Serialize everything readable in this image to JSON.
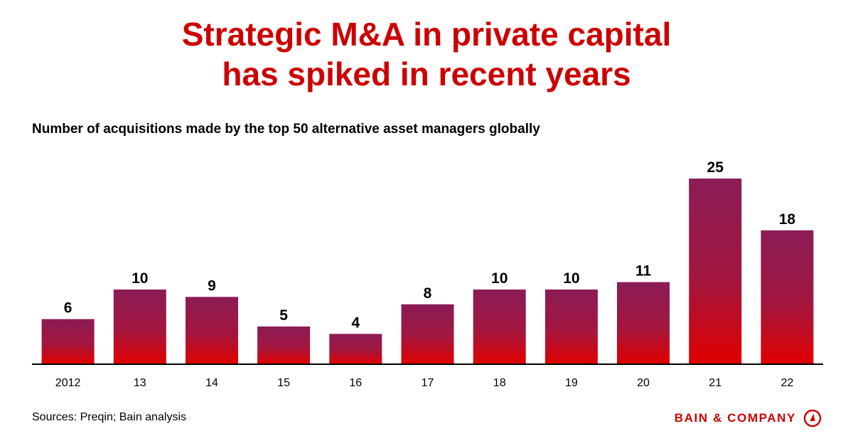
{
  "title_line1": "Strategic M&A in private capital",
  "title_line2": "has spiked in recent years",
  "subtitle": "Number of acquisitions made by the top 50 alternative asset managers globally",
  "source": "Sources: Preqin; Bain analysis",
  "brand": "BAIN & COMPANY",
  "colors": {
    "title": "#cc0000",
    "bar_top": "#8a1c56",
    "bar_bottom": "#e00000",
    "axis": "#000000"
  },
  "chart_data": {
    "type": "bar",
    "categories": [
      "2012",
      "13",
      "14",
      "15",
      "16",
      "17",
      "18",
      "19",
      "20",
      "21",
      "22"
    ],
    "values": [
      6,
      10,
      9,
      5,
      4,
      8,
      10,
      10,
      11,
      25,
      18
    ],
    "data_labels": true,
    "grid": false,
    "legend": "none",
    "ylim": [
      0,
      25
    ]
  }
}
